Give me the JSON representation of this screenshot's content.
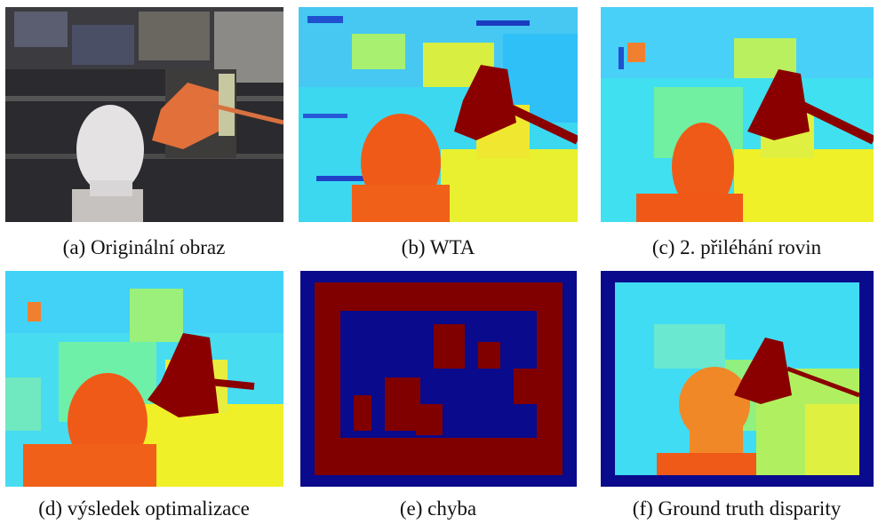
{
  "figure": {
    "panels": [
      {
        "caption": "(a) Originální obraz"
      },
      {
        "caption": "(b) WTA"
      },
      {
        "caption": "(c) 2. přiléhání rovin"
      },
      {
        "caption": "(d) výsledek optimalizace"
      },
      {
        "caption": "(e) chyba"
      },
      {
        "caption": "(f) Ground truth disparity"
      }
    ]
  }
}
